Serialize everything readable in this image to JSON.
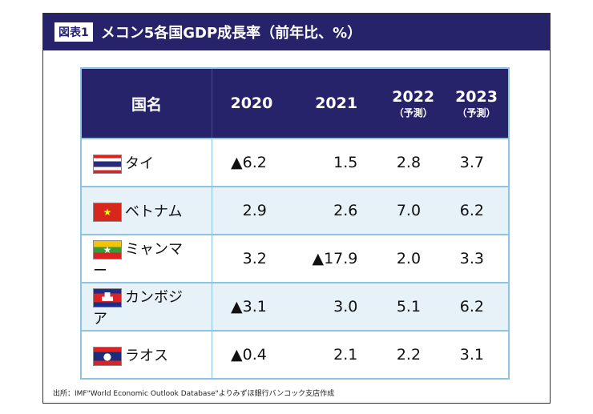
{
  "figure_label": "図表1",
  "title": "メコン5各国GDP成長率（前年比、%）",
  "columns": [
    {
      "label": "国名"
    },
    {
      "label": "2020"
    },
    {
      "label": "2021"
    },
    {
      "label": "2022",
      "sub": "（予測）"
    },
    {
      "label": "2023",
      "sub": "（予測）"
    }
  ],
  "rows": [
    {
      "country": "タイ",
      "flag": "thailand-flag",
      "values": [
        "▲6.2",
        "1.5",
        "2.8",
        "3.7"
      ]
    },
    {
      "country": "ベトナム",
      "flag": "vietnam-flag",
      "values": [
        "2.9",
        "2.6",
        "7.0",
        "6.2"
      ]
    },
    {
      "country": "ミャンマー",
      "flag": "myanmar-flag",
      "values": [
        "3.2",
        "▲17.9",
        "2.0",
        "3.3"
      ]
    },
    {
      "country": "カンボジア",
      "flag": "cambodia-flag",
      "values": [
        "▲3.1",
        "3.0",
        "5.1",
        "6.2"
      ]
    },
    {
      "country": "ラオス",
      "flag": "laos-flag",
      "values": [
        "▲0.4",
        "2.1",
        "2.2",
        "3.1"
      ]
    }
  ],
  "source": "出所：IMF\"World Economic Outlook Database\"よりみずほ銀行バンコック支店作成",
  "colors": {
    "header": "#27236b",
    "border": "#8cc4e4",
    "alt_row": "#e6f1f8"
  }
}
